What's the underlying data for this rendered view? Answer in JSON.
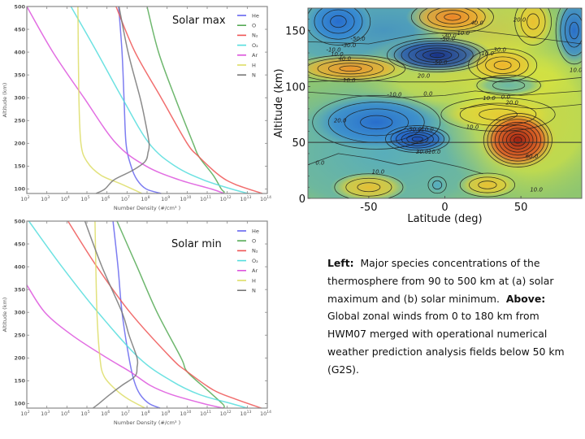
{
  "caption": {
    "left_label": "Left:",
    "left_text": "Major species concentrations of the thermosphere from 90 to 500 km at (a) solar maximum and (b) solar minimum.",
    "above_label": "Above:",
    "above_text": "Global zonal winds from 0 to 180 km from HWM07 merged with operational numerical weather prediction analysis fields below 50 km (G2S)."
  },
  "chart_data": [
    {
      "type": "line",
      "id": "solar-max",
      "title": "Solar max",
      "xlabel": "Number Density (#/cm³ )",
      "ylabel": "Altitude (km)",
      "xscale": "log",
      "xlim_log10": [
        2,
        14
      ],
      "ylim": [
        90,
        500
      ],
      "xticks_log10": [
        2,
        3,
        4,
        5,
        6,
        7,
        8,
        9,
        10,
        11,
        12,
        13,
        14
      ],
      "yticks": [
        100,
        150,
        200,
        250,
        300,
        350,
        400,
        450,
        500
      ],
      "legend": "top-right",
      "grid": false,
      "series": [
        {
          "name": "He",
          "color": "#6666ee",
          "points": [
            [
              500,
              6.58
            ],
            [
              400,
              6.75
            ],
            [
              300,
              6.85
            ],
            [
              200,
              6.95
            ],
            [
              150,
              7.2
            ],
            [
              120,
              7.5
            ],
            [
              100,
              7.95
            ],
            [
              90,
              8.7
            ]
          ]
        },
        {
          "name": "O",
          "color": "#55aa55",
          "points": [
            [
              500,
              8.0
            ],
            [
              400,
              8.57
            ],
            [
              300,
              9.4
            ],
            [
              200,
              10.3
            ],
            [
              170,
              10.6
            ],
            [
              130,
              11.3
            ],
            [
              100,
              11.7
            ],
            [
              93,
              11.85
            ],
            [
              90,
              11.7
            ]
          ]
        },
        {
          "name": "N₂",
          "color": "#ee5555",
          "points": [
            [
              500,
              6.45
            ],
            [
              400,
              7.4
            ],
            [
              300,
              8.7
            ],
            [
              200,
              10.0
            ],
            [
              170,
              10.6
            ],
            [
              130,
              11.6
            ],
            [
              110,
              12.4
            ],
            [
              90,
              13.75
            ]
          ]
        },
        {
          "name": "O₂",
          "color": "#55dddd",
          "points": [
            [
              500,
              4.2
            ],
            [
              400,
              5.5
            ],
            [
              300,
              6.75
            ],
            [
              200,
              8.1
            ],
            [
              150,
              9.4
            ],
            [
              120,
              10.8
            ],
            [
              100,
              12.2
            ],
            [
              90,
              13.05
            ]
          ]
        },
        {
          "name": "Ar",
          "color": "#dd55dd",
          "points": [
            [
              500,
              2.0
            ],
            [
              400,
              3.3
            ],
            [
              300,
              4.85
            ],
            [
              200,
              6.45
            ],
            [
              150,
              7.95
            ],
            [
              120,
              9.6
            ],
            [
              100,
              11.2
            ],
            [
              90,
              11.85
            ]
          ]
        },
        {
          "name": "H",
          "color": "#dddd66",
          "points": [
            [
              500,
              4.55
            ],
            [
              300,
              4.6
            ],
            [
              200,
              4.7
            ],
            [
              160,
              5.0
            ],
            [
              130,
              5.7
            ],
            [
              110,
              6.75
            ],
            [
              90,
              7.75
            ]
          ]
        },
        {
          "name": "N",
          "color": "#777777",
          "points": [
            [
              500,
              6.6
            ],
            [
              400,
              7.05
            ],
            [
              300,
              7.65
            ],
            [
              250,
              7.9
            ],
            [
              200,
              8.1
            ],
            [
              180,
              8.05
            ],
            [
              160,
              7.9
            ],
            [
              140,
              7.25
            ],
            [
              120,
              6.35
            ],
            [
              100,
              5.9
            ],
            [
              90,
              5.45
            ]
          ]
        }
      ]
    },
    {
      "type": "line",
      "id": "solar-min",
      "title": "Solar min",
      "xlabel": "Number Density (#/cm³ )",
      "ylabel": "Altitude (km)",
      "xscale": "log",
      "xlim_log10": [
        2,
        14
      ],
      "ylim": [
        90,
        500
      ],
      "xticks_log10": [
        2,
        3,
        4,
        5,
        6,
        7,
        8,
        9,
        10,
        11,
        12,
        13,
        14
      ],
      "yticks": [
        100,
        150,
        200,
        250,
        300,
        350,
        400,
        450,
        500
      ],
      "legend": "top-right",
      "grid": false,
      "series": [
        {
          "name": "He",
          "color": "#6666ee",
          "points": [
            [
              500,
              6.3
            ],
            [
              400,
              6.55
            ],
            [
              300,
              6.75
            ],
            [
              200,
              7.1
            ],
            [
              150,
              7.35
            ],
            [
              120,
              7.65
            ],
            [
              100,
              8.1
            ],
            [
              90,
              8.65
            ]
          ]
        },
        {
          "name": "O",
          "color": "#55aa55",
          "points": [
            [
              500,
              6.5
            ],
            [
              400,
              7.5
            ],
            [
              300,
              8.5
            ],
            [
              200,
              9.7
            ],
            [
              170,
              10.0
            ],
            [
              130,
              11.0
            ],
            [
              100,
              11.75
            ],
            [
              93,
              11.85
            ],
            [
              90,
              11.8
            ]
          ]
        },
        {
          "name": "N₂",
          "color": "#ee5555",
          "points": [
            [
              500,
              4.05
            ],
            [
              400,
              5.5
            ],
            [
              300,
              7.15
            ],
            [
              200,
              9.2
            ],
            [
              170,
              10.0
            ],
            [
              130,
              11.3
            ],
            [
              110,
              12.4
            ],
            [
              90,
              13.7
            ]
          ]
        },
        {
          "name": "O₂",
          "color": "#55dddd",
          "points": [
            [
              500,
              2.1
            ],
            [
              400,
              3.75
            ],
            [
              300,
              5.55
            ],
            [
              200,
              7.6
            ],
            [
              150,
              9.2
            ],
            [
              120,
              10.6
            ],
            [
              100,
              12.2
            ],
            [
              90,
              13.0
            ]
          ]
        },
        {
          "name": "Ar",
          "color": "#dd55dd",
          "points": [
            [
              360,
              2.0
            ],
            [
              300,
              2.9
            ],
            [
              250,
              4.25
            ],
            [
              200,
              6.0
            ],
            [
              170,
              7.15
            ],
            [
              140,
              8.15
            ],
            [
              120,
              9.2
            ],
            [
              100,
              10.8
            ],
            [
              90,
              11.8
            ]
          ]
        },
        {
          "name": "H",
          "color": "#dddd66",
          "points": [
            [
              500,
              5.4
            ],
            [
              300,
              5.5
            ],
            [
              200,
              5.65
            ],
            [
              160,
              5.85
            ],
            [
              130,
              6.45
            ],
            [
              110,
              7.05
            ],
            [
              90,
              7.9
            ]
          ]
        },
        {
          "name": "N",
          "color": "#777777",
          "points": [
            [
              500,
              4.9
            ],
            [
              400,
              5.75
            ],
            [
              300,
              6.75
            ],
            [
              250,
              7.1
            ],
            [
              200,
              7.5
            ],
            [
              180,
              7.5
            ],
            [
              160,
              7.4
            ],
            [
              140,
              6.75
            ],
            [
              120,
              6.15
            ],
            [
              100,
              5.6
            ],
            [
              90,
              5.3
            ]
          ]
        }
      ]
    },
    {
      "type": "heatmap",
      "id": "zonal-winds",
      "title": "",
      "xlabel": "Latitude (deg)",
      "ylabel": "Altitude (km)",
      "xlim": [
        -90,
        90
      ],
      "ylim": [
        0,
        170
      ],
      "xticks": [
        -50,
        0,
        50
      ],
      "yticks": [
        0,
        50,
        100,
        150
      ],
      "reference_line_altitude": 50,
      "colormap": "jet",
      "features": [
        {
          "lat": -70,
          "alt": 158,
          "value": -40,
          "lat_w": 14,
          "alt_w": 14
        },
        {
          "lat": 5,
          "alt": 162,
          "value": 50,
          "lat_w": 18,
          "alt_w": 10
        },
        {
          "lat": 58,
          "alt": 158,
          "value": 30,
          "lat_w": 8,
          "alt_w": 14
        },
        {
          "lat": 85,
          "alt": 150,
          "value": -40,
          "lat_w": 8,
          "alt_w": 20
        },
        {
          "lat": -5,
          "alt": 128,
          "value": -70,
          "lat_w": 22,
          "alt_w": 10
        },
        {
          "lat": -62,
          "alt": 116,
          "value": 45,
          "lat_w": 24,
          "alt_w": 8
        },
        {
          "lat": 38,
          "alt": 119,
          "value": 35,
          "lat_w": 15,
          "alt_w": 10
        },
        {
          "lat": 42,
          "alt": 101,
          "value": -10,
          "lat_w": 14,
          "alt_w": 6
        },
        {
          "lat": -45,
          "alt": 68,
          "value": -40,
          "lat_w": 28,
          "alt_w": 16
        },
        {
          "lat": -18,
          "alt": 53,
          "value": -55,
          "lat_w": 14,
          "alt_w": 8
        },
        {
          "lat": 35,
          "alt": 75,
          "value": 25,
          "lat_w": 25,
          "alt_w": 10
        },
        {
          "lat": 48,
          "alt": 52,
          "value": 85,
          "lat_w": 15,
          "alt_w": 16
        },
        {
          "lat": -50,
          "alt": 10,
          "value": 30,
          "lat_w": 15,
          "alt_w": 8
        },
        {
          "lat": 28,
          "alt": 12,
          "value": 30,
          "lat_w": 12,
          "alt_w": 7
        },
        {
          "lat": -5,
          "alt": 12,
          "value": -15,
          "lat_w": 4,
          "alt_w": 5
        }
      ],
      "contour_labels": [
        {
          "text": "-50.0",
          "lat": -62,
          "alt": 141
        },
        {
          "text": "-30.0",
          "lat": -68,
          "alt": 135
        },
        {
          "text": "-10.0",
          "lat": -78,
          "alt": 131
        },
        {
          "text": "10.0",
          "lat": -75,
          "alt": 127
        },
        {
          "text": "40.0",
          "lat": -70,
          "alt": 123
        },
        {
          "text": "10.0",
          "lat": -67,
          "alt": 104
        },
        {
          "text": "-10.0",
          "lat": -38,
          "alt": 91
        },
        {
          "text": "0.0",
          "lat": -14,
          "alt": 92
        },
        {
          "text": "20.0",
          "lat": -18,
          "alt": 108
        },
        {
          "text": "-30.0",
          "lat": -2,
          "alt": 144
        },
        {
          "text": "-50.0",
          "lat": -3,
          "alt": 141
        },
        {
          "text": "10.0",
          "lat": 8,
          "alt": 146
        },
        {
          "text": "40.0",
          "lat": 17,
          "alt": 155
        },
        {
          "text": "20.0",
          "lat": 45,
          "alt": 158
        },
        {
          "text": "10.0",
          "lat": 24,
          "alt": 128
        },
        {
          "text": "30.0",
          "lat": 32,
          "alt": 131
        },
        {
          "text": "-50.0",
          "lat": -8,
          "alt": 120
        },
        {
          "text": "10.0",
          "lat": 82,
          "alt": 113
        },
        {
          "text": "10.0",
          "lat": 25,
          "alt": 88
        },
        {
          "text": "0.0",
          "lat": 37,
          "alt": 89
        },
        {
          "text": "20.0",
          "lat": 40,
          "alt": 84
        },
        {
          "text": "10.0",
          "lat": 14,
          "alt": 62
        },
        {
          "text": "20.0",
          "lat": -73,
          "alt": 68
        },
        {
          "text": "-50.0",
          "lat": -25,
          "alt": 60
        },
        {
          "text": "-10.0",
          "lat": -17,
          "alt": 60
        },
        {
          "text": "30.0",
          "lat": -19,
          "alt": 40
        },
        {
          "text": "10.0",
          "lat": -11,
          "alt": 40
        },
        {
          "text": "0.0",
          "lat": -85,
          "alt": 30
        },
        {
          "text": "10.0",
          "lat": -48,
          "alt": 22
        },
        {
          "text": "60.0",
          "lat": 53,
          "alt": 36
        },
        {
          "text": "10.0",
          "lat": 56,
          "alt": 6
        }
      ]
    }
  ]
}
